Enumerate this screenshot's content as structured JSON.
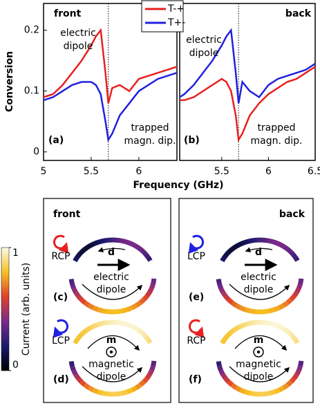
{
  "chart_data": [
    {
      "type": "line",
      "side": "front",
      "label": "(a)",
      "ylabel": "Conversion",
      "xlabel": "Frequency (GHz)",
      "x": [
        5.0,
        5.1,
        5.2,
        5.3,
        5.4,
        5.5,
        5.55,
        5.6,
        5.65,
        5.68,
        5.72,
        5.8,
        5.9,
        6.0,
        6.1,
        6.2,
        6.3,
        6.4
      ],
      "series": [
        {
          "name": "T-+",
          "color": "#e8201e",
          "values": [
            0.09,
            0.095,
            0.11,
            0.13,
            0.15,
            0.175,
            0.19,
            0.2,
            0.13,
            0.08,
            0.105,
            0.11,
            0.1,
            0.12,
            0.125,
            0.13,
            0.135,
            0.14
          ]
        },
        {
          "name": "T+-",
          "color": "#2020e0",
          "values": [
            0.085,
            0.09,
            0.1,
            0.11,
            0.115,
            0.115,
            0.11,
            0.095,
            0.05,
            0.02,
            0.03,
            0.06,
            0.08,
            0.1,
            0.11,
            0.12,
            0.125,
            0.13
          ]
        }
      ],
      "xlim": [
        5.0,
        6.4
      ],
      "ylim": [
        -0.014,
        0.244
      ],
      "xticks": [
        5,
        5.5,
        6
      ],
      "yticks": [
        0,
        0.1,
        0.2
      ],
      "vline": 5.68,
      "annotations": [
        {
          "lines": [
            "electric",
            "dipole"
          ],
          "color": "#e8201e"
        },
        {
          "lines": [
            "trapped",
            "magn. dip."
          ],
          "color": "#2020e0"
        }
      ]
    },
    {
      "type": "line",
      "side": "back",
      "label": "(b)",
      "x": [
        5.05,
        5.1,
        5.2,
        5.3,
        5.4,
        5.5,
        5.55,
        5.6,
        5.65,
        5.68,
        5.72,
        5.8,
        5.9,
        6.0,
        6.1,
        6.2,
        6.3,
        6.4,
        6.5
      ],
      "series": [
        {
          "name": "T-+",
          "color": "#e8201e",
          "values": [
            0.085,
            0.085,
            0.09,
            0.1,
            0.11,
            0.12,
            0.115,
            0.1,
            0.06,
            0.02,
            0.03,
            0.06,
            0.08,
            0.095,
            0.105,
            0.115,
            0.12,
            0.13,
            0.14
          ]
        },
        {
          "name": "T+-",
          "color": "#2020e0",
          "values": [
            0.09,
            0.095,
            0.11,
            0.13,
            0.15,
            0.175,
            0.19,
            0.2,
            0.13,
            0.08,
            0.115,
            0.1,
            0.09,
            0.11,
            0.12,
            0.125,
            0.13,
            0.135,
            0.145
          ]
        }
      ],
      "xlim": [
        5.05,
        6.5
      ],
      "ylim": [
        -0.014,
        0.244
      ],
      "xticks": [
        5.5,
        6,
        6.5
      ],
      "vline": 5.68,
      "annotations": [
        {
          "lines": [
            "electric",
            "dipole"
          ],
          "color": "#2020e0"
        },
        {
          "lines": [
            "trapped",
            "magn. dip."
          ],
          "color": "#e8201e"
        }
      ]
    }
  ],
  "colorbar": {
    "label": "Current (arb. units)",
    "ticks": [
      0,
      1
    ]
  },
  "panels": [
    {
      "title": "front",
      "rows": [
        {
          "label": "(c)",
          "pol": "RCP",
          "color": "#e8201e",
          "symbol": "d",
          "caption": [
            "electric",
            "dipole"
          ]
        },
        {
          "label": "(d)",
          "pol": "LCP",
          "color": "#2020e0",
          "symbol": "m",
          "caption": [
            "magnetic",
            "dipole"
          ]
        }
      ]
    },
    {
      "title": "back",
      "rows": [
        {
          "label": "(e)",
          "pol": "LCP",
          "color": "#2020e0",
          "symbol": "d",
          "caption": [
            "electric",
            "dipole"
          ]
        },
        {
          "label": "(f)",
          "pol": "RCP",
          "color": "#e8201e",
          "symbol": "m",
          "caption": [
            "magnetic",
            "dipole"
          ]
        }
      ]
    }
  ]
}
